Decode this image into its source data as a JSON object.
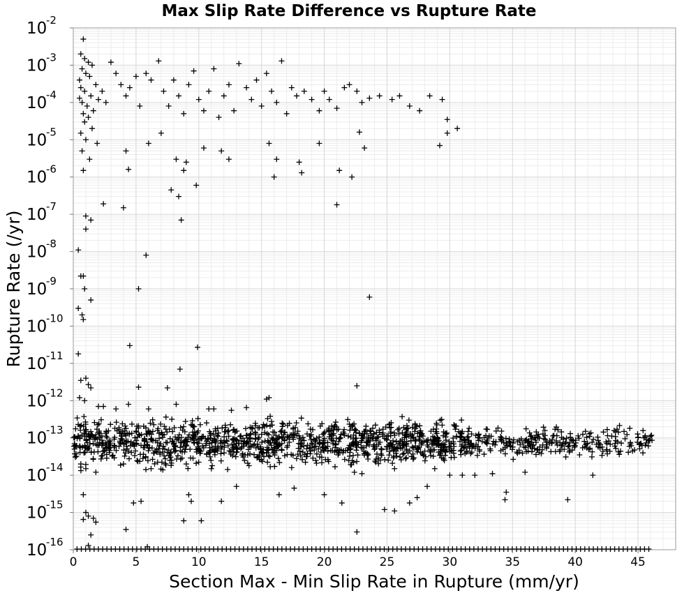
{
  "chart_data": {
    "type": "scatter",
    "title": "Max Slip Rate Difference vs Rupture Rate",
    "xlabel": "Section Max - Min Slip Rate in Rupture (mm/yr)",
    "ylabel": "Rupture Rate (/yr)",
    "xlim": [
      0,
      48
    ],
    "ylim": [
      1e-16,
      0.01
    ],
    "yscale": "log",
    "grid": true,
    "marker": "plus",
    "marker_color": "#000000",
    "x_ticks": [
      0,
      5,
      10,
      15,
      20,
      25,
      30,
      35,
      40,
      45
    ],
    "y_ticks": [
      {
        "base": "10",
        "exp": "-16"
      },
      {
        "base": "10",
        "exp": "-15"
      },
      {
        "base": "10",
        "exp": "-14"
      },
      {
        "base": "10",
        "exp": "-13"
      },
      {
        "base": "10",
        "exp": "-12"
      },
      {
        "base": "10",
        "exp": "-11"
      },
      {
        "base": "10",
        "exp": "-10"
      },
      {
        "base": "10",
        "exp": "-9"
      },
      {
        "base": "10",
        "exp": "-8"
      },
      {
        "base": "10",
        "exp": "-7"
      },
      {
        "base": "10",
        "exp": "-6"
      },
      {
        "base": "10",
        "exp": "-5"
      },
      {
        "base": "10",
        "exp": "-4"
      },
      {
        "base": "10",
        "exp": "-3"
      },
      {
        "base": "10",
        "exp": "-2"
      }
    ],
    "points": [
      [
        0.8,
        0.005
      ],
      [
        0.6,
        0.002
      ],
      [
        0.9,
        0.0015
      ],
      [
        1.2,
        0.0012
      ],
      [
        1.5,
        0.001
      ],
      [
        0.7,
        0.0008
      ],
      [
        1.0,
        0.0006
      ],
      [
        1.3,
        0.0005
      ],
      [
        0.5,
        0.0004
      ],
      [
        1.8,
        0.0003
      ],
      [
        0.6,
        0.00025
      ],
      [
        0.9,
        0.0002
      ],
      [
        1.4,
        0.00015
      ],
      [
        2.0,
        0.00012
      ],
      [
        0.7,
        0.0001
      ],
      [
        1.1,
        8e-05
      ],
      [
        1.6,
        6e-05
      ],
      [
        0.8,
        5e-05
      ],
      [
        1.2,
        4e-05
      ],
      [
        0.9,
        3e-05
      ],
      [
        1.5,
        2e-05
      ],
      [
        0.6,
        1.5e-05
      ],
      [
        1.0,
        1e-05
      ],
      [
        1.9,
        8e-06
      ],
      [
        0.7,
        5e-06
      ],
      [
        1.3,
        3e-06
      ],
      [
        0.8,
        1.5e-06
      ],
      [
        0.5,
        0.00013
      ],
      [
        2.3,
        0.0002
      ],
      [
        2.6,
        0.0001
      ],
      [
        3.0,
        0.0012
      ],
      [
        3.4,
        0.0006
      ],
      [
        3.8,
        0.0003
      ],
      [
        4.2,
        0.00015
      ],
      [
        4.5,
        0.00025
      ],
      [
        5.0,
        0.0005
      ],
      [
        5.3,
        8e-05
      ],
      [
        5.8,
        0.0006
      ],
      [
        6.2,
        0.0004
      ],
      [
        6.8,
        0.0013
      ],
      [
        7.2,
        0.0002
      ],
      [
        7.6,
        8e-05
      ],
      [
        8.0,
        0.0004
      ],
      [
        8.4,
        0.00015
      ],
      [
        8.8,
        5e-05
      ],
      [
        9.2,
        0.0003
      ],
      [
        9.6,
        0.0007
      ],
      [
        10.0,
        0.00012
      ],
      [
        10.4,
        6e-05
      ],
      [
        10.8,
        0.0002
      ],
      [
        11.2,
        0.0008
      ],
      [
        11.6,
        4e-05
      ],
      [
        12.0,
        0.00015
      ],
      [
        12.4,
        0.0003
      ],
      [
        12.8,
        6e-05
      ],
      [
        13.2,
        0.0011
      ],
      [
        13.8,
        0.00025
      ],
      [
        14.2,
        0.00012
      ],
      [
        14.6,
        0.0004
      ],
      [
        15.0,
        8e-05
      ],
      [
        15.4,
        0.0006
      ],
      [
        15.8,
        0.0002
      ],
      [
        16.2,
        0.0001
      ],
      [
        16.6,
        0.0013
      ],
      [
        17.0,
        5e-05
      ],
      [
        17.4,
        0.00025
      ],
      [
        17.8,
        0.00015
      ],
      [
        18.4,
        0.0002
      ],
      [
        19.0,
        0.00012
      ],
      [
        19.6,
        6e-05
      ],
      [
        20.0,
        0.0002
      ],
      [
        20.4,
        0.00012
      ],
      [
        21.0,
        7e-05
      ],
      [
        21.6,
        0.00025
      ],
      [
        22.0,
        0.0003
      ],
      [
        22.6,
        0.0002
      ],
      [
        23.0,
        0.0001
      ],
      [
        23.6,
        0.00013
      ],
      [
        24.4,
        0.00015
      ],
      [
        25.4,
        0.00012
      ],
      [
        26.0,
        0.00015
      ],
      [
        26.8,
        8e-05
      ],
      [
        27.6,
        6e-05
      ],
      [
        28.4,
        0.00015
      ],
      [
        29.4,
        0.00012
      ],
      [
        29.8,
        3.5e-05
      ],
      [
        30.6,
        2e-05
      ],
      [
        29.8,
        1.5e-05
      ],
      [
        29.2,
        7e-06
      ],
      [
        22.8,
        1.6e-05
      ],
      [
        23.2,
        6e-06
      ],
      [
        21.2,
        1.5e-06
      ],
      [
        22.2,
        1e-06
      ],
      [
        19.6,
        8e-06
      ],
      [
        18.0,
        2.5e-06
      ],
      [
        18.2,
        1.3e-06
      ],
      [
        16.0,
        1e-06
      ],
      [
        16.2,
        3e-06
      ],
      [
        15.6,
        8e-06
      ],
      [
        12.4,
        3e-06
      ],
      [
        11.8,
        5e-06
      ],
      [
        10.4,
        6e-06
      ],
      [
        9.0,
        2.5e-06
      ],
      [
        8.2,
        3e-06
      ],
      [
        7.0,
        1.5e-05
      ],
      [
        6.0,
        8e-06
      ],
      [
        4.2,
        5e-06
      ],
      [
        4.4,
        1.6e-06
      ],
      [
        8.8,
        1.5e-06
      ],
      [
        9.8,
        6e-07
      ],
      [
        7.8,
        4.5e-07
      ],
      [
        8.4,
        3e-07
      ],
      [
        4.0,
        1.5e-07
      ],
      [
        2.4,
        1.9e-07
      ],
      [
        1.0,
        9e-08
      ],
      [
        1.4,
        7e-08
      ],
      [
        1.0,
        4e-08
      ],
      [
        8.6,
        7e-08
      ],
      [
        21.0,
        1.8e-07
      ],
      [
        0.4,
        1.1e-08
      ],
      [
        5.8,
        8e-09
      ],
      [
        0.6,
        2.2e-09
      ],
      [
        0.8,
        2.2e-09
      ],
      [
        0.9,
        1e-09
      ],
      [
        5.2,
        1e-09
      ],
      [
        1.4,
        5e-10
      ],
      [
        23.6,
        6e-10
      ],
      [
        0.4,
        3e-10
      ],
      [
        0.7,
        2e-10
      ],
      [
        0.8,
        1.5e-10
      ],
      [
        4.5,
        3e-11
      ],
      [
        9.9,
        2.7e-11
      ],
      [
        0.4,
        1.8e-11
      ],
      [
        0.6,
        3.5e-12
      ],
      [
        1.0,
        4e-12
      ],
      [
        1.2,
        2.7e-12
      ],
      [
        1.4,
        2.2e-12
      ],
      [
        5.2,
        2.3e-12
      ],
      [
        7.5,
        2.2e-12
      ],
      [
        8.5,
        7e-12
      ],
      [
        22.6,
        2.5e-12
      ],
      [
        0.5,
        1.2e-12
      ],
      [
        0.9,
        1e-12
      ],
      [
        2.0,
        7e-13
      ],
      [
        6.0,
        6e-13
      ],
      [
        8.2,
        8e-13
      ],
      [
        10.8,
        6e-13
      ],
      [
        12.6,
        5.5e-13
      ],
      [
        13.8,
        6.5e-13
      ],
      [
        15.4,
        1.1e-12
      ],
      [
        15.6,
        1.2e-12
      ],
      [
        11.2,
        6e-13
      ],
      [
        3.4,
        6e-13
      ],
      [
        4.4,
        8e-13
      ],
      [
        2.4,
        7e-13
      ],
      [
        0.6,
        2e-14
      ],
      [
        1.0,
        1.5e-14
      ],
      [
        1.8,
        1.2e-14
      ],
      [
        4.0,
        2e-14
      ],
      [
        6.2,
        1.5e-14
      ],
      [
        9.0,
        2e-14
      ],
      [
        11.0,
        1.5e-14
      ],
      [
        14.0,
        1.8e-14
      ],
      [
        17.4,
        1.6e-14
      ],
      [
        22.4,
        1.2e-14
      ],
      [
        23.0,
        1.1e-14
      ],
      [
        25.6,
        1.5e-14
      ],
      [
        28.8,
        1.5e-14
      ],
      [
        30.0,
        1e-14
      ],
      [
        31.0,
        1e-14
      ],
      [
        32.0,
        1e-14
      ],
      [
        33.4,
        1.1e-14
      ],
      [
        36.0,
        1.2e-14
      ],
      [
        41.4,
        1e-14
      ],
      [
        34.5,
        3.5e-15
      ],
      [
        34.4,
        2.2e-15
      ],
      [
        39.4,
        2.2e-15
      ],
      [
        0.8,
        3e-15
      ],
      [
        1.0,
        1e-15
      ],
      [
        0.8,
        6.5e-16
      ],
      [
        1.2,
        8e-16
      ],
      [
        1.6,
        7e-16
      ],
      [
        1.8,
        5.5e-16
      ],
      [
        4.2,
        3.5e-16
      ],
      [
        1.4,
        2.5e-16
      ],
      [
        4.8,
        1.8e-15
      ],
      [
        5.4,
        2e-15
      ],
      [
        9.2,
        3e-15
      ],
      [
        9.4,
        2e-15
      ],
      [
        10.2,
        6e-16
      ],
      [
        11.8,
        2e-15
      ],
      [
        13.0,
        5e-15
      ],
      [
        16.4,
        3e-15
      ],
      [
        17.6,
        4.5e-15
      ],
      [
        20.0,
        3e-15
      ],
      [
        21.4,
        1.8e-15
      ],
      [
        24.8,
        1.2e-15
      ],
      [
        25.6,
        1.1e-15
      ],
      [
        26.8,
        1.8e-15
      ],
      [
        27.4,
        2.5e-15
      ],
      [
        28.2,
        5e-15
      ],
      [
        8.8,
        6e-16
      ],
      [
        22.6,
        3e-16
      ],
      [
        1.2,
        1.3e-16
      ],
      [
        5.9,
        1.2e-16
      ]
    ]
  }
}
